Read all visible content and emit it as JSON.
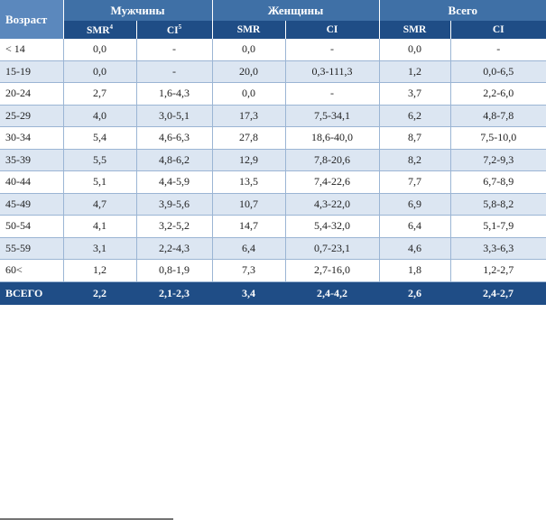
{
  "table": {
    "age_header": "Возраст",
    "groups": [
      "Мужчины",
      "Женщины",
      "Всего"
    ],
    "subheaders": [
      {
        "label": "SMR",
        "sup": "4"
      },
      {
        "label": "CI",
        "sup": "5"
      },
      {
        "label": "SMR",
        "sup": ""
      },
      {
        "label": "CI",
        "sup": ""
      },
      {
        "label": "SMR",
        "sup": ""
      },
      {
        "label": "CI",
        "sup": ""
      }
    ],
    "rows": [
      [
        "< 14",
        "0,0",
        "-",
        "0,0",
        "-",
        "0,0",
        "-"
      ],
      [
        "15-19",
        "0,0",
        "-",
        "20,0",
        "0,3-111,3",
        "1,2",
        "0,0-6,5"
      ],
      [
        "20-24",
        "2,7",
        "1,6-4,3",
        "0,0",
        "-",
        "3,7",
        "2,2-6,0"
      ],
      [
        "25-29",
        "4,0",
        "3,0-5,1",
        "17,3",
        "7,5-34,1",
        "6,2",
        "4,8-7,8"
      ],
      [
        "30-34",
        "5,4",
        "4,6-6,3",
        "27,8",
        "18,6-40,0",
        "8,7",
        "7,5-10,0"
      ],
      [
        "35-39",
        "5,5",
        "4,8-6,2",
        "12,9",
        "7,8-20,6",
        "8,2",
        "7,2-9,3"
      ],
      [
        "40-44",
        "5,1",
        "4,4-5,9",
        "13,5",
        "7,4-22,6",
        "7,7",
        "6,7-8,9"
      ],
      [
        "45-49",
        "4,7",
        "3,9-5,6",
        "10,7",
        "4,3-22,0",
        "6,9",
        "5,8-8,2"
      ],
      [
        "50-54",
        "4,1",
        "3,2-5,2",
        "14,7",
        "5,4-32,0",
        "6,4",
        "5,1-7,9"
      ],
      [
        "55-59",
        "3,1",
        "2,2-4,3",
        "6,4",
        "0,7-23,1",
        "4,6",
        "3,3-6,3"
      ],
      [
        "60<",
        "1,2",
        "0,8-1,9",
        "7,3",
        "2,7-16,0",
        "1,8",
        "1,2-2,7"
      ]
    ],
    "total": [
      "ВСЕГО",
      "2,2",
      "2,1-2,3",
      "3,4",
      "2,4-4,2",
      "2,6",
      "2,4-2,7"
    ]
  }
}
